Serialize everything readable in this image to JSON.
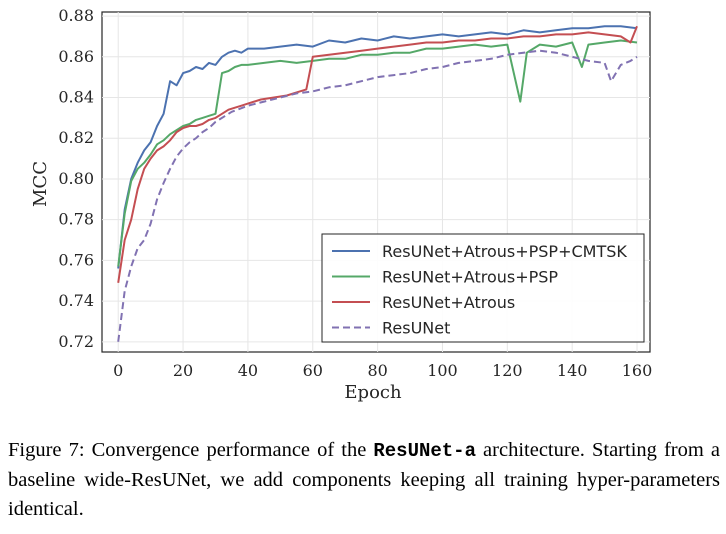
{
  "chart_data": {
    "type": "line",
    "title": "",
    "xlabel": "Epoch",
    "ylabel": "MCC",
    "xlim": [
      -5,
      164
    ],
    "ylim": [
      0.715,
      0.882
    ],
    "xticks": [
      0,
      20,
      40,
      60,
      80,
      100,
      120,
      140,
      160
    ],
    "yticks": [
      0.72,
      0.74,
      0.76,
      0.78,
      0.8,
      0.82,
      0.84,
      0.86,
      0.88
    ],
    "ytick_labels": [
      "0.72",
      "0.74",
      "0.76",
      "0.78",
      "0.80",
      "0.82",
      "0.84",
      "0.86",
      "0.88"
    ],
    "grid": true,
    "legend_position": "lower-right",
    "series": [
      {
        "name": "ResUNet+Atrous+PSP+CMTSK",
        "color": "#4c72b0",
        "dash": "solid",
        "x": [
          0,
          2,
          4,
          6,
          8,
          10,
          12,
          14,
          16,
          18,
          20,
          22,
          24,
          26,
          28,
          30,
          32,
          34,
          36,
          38,
          40,
          45,
          50,
          55,
          60,
          65,
          70,
          75,
          80,
          85,
          90,
          95,
          100,
          105,
          110,
          115,
          120,
          125,
          130,
          135,
          140,
          145,
          150,
          155,
          160
        ],
        "y": [
          0.756,
          0.785,
          0.8,
          0.808,
          0.814,
          0.818,
          0.826,
          0.832,
          0.848,
          0.846,
          0.852,
          0.853,
          0.855,
          0.854,
          0.857,
          0.856,
          0.86,
          0.862,
          0.863,
          0.862,
          0.864,
          0.864,
          0.865,
          0.866,
          0.865,
          0.868,
          0.867,
          0.869,
          0.868,
          0.87,
          0.869,
          0.87,
          0.871,
          0.87,
          0.871,
          0.872,
          0.871,
          0.873,
          0.872,
          0.873,
          0.874,
          0.874,
          0.875,
          0.875,
          0.874
        ]
      },
      {
        "name": "ResUNet+Atrous+PSP",
        "color": "#55a868",
        "dash": "solid",
        "x": [
          0,
          2,
          4,
          6,
          8,
          10,
          12,
          14,
          16,
          18,
          20,
          22,
          24,
          26,
          28,
          30,
          32,
          34,
          36,
          38,
          40,
          45,
          50,
          55,
          60,
          65,
          70,
          75,
          80,
          85,
          90,
          95,
          100,
          105,
          110,
          115,
          120,
          122,
          124,
          126,
          130,
          135,
          140,
          143,
          145,
          150,
          155,
          160
        ],
        "y": [
          0.757,
          0.783,
          0.799,
          0.805,
          0.808,
          0.812,
          0.817,
          0.819,
          0.822,
          0.824,
          0.826,
          0.827,
          0.829,
          0.83,
          0.831,
          0.832,
          0.852,
          0.853,
          0.855,
          0.856,
          0.856,
          0.857,
          0.858,
          0.857,
          0.858,
          0.859,
          0.859,
          0.861,
          0.861,
          0.862,
          0.862,
          0.864,
          0.864,
          0.865,
          0.866,
          0.865,
          0.866,
          0.852,
          0.838,
          0.862,
          0.866,
          0.865,
          0.867,
          0.855,
          0.866,
          0.867,
          0.868,
          0.867
        ]
      },
      {
        "name": "ResUNet+Atrous",
        "color": "#c44e52",
        "dash": "solid",
        "x": [
          0,
          2,
          4,
          6,
          8,
          10,
          12,
          14,
          16,
          18,
          20,
          22,
          24,
          26,
          28,
          30,
          32,
          34,
          36,
          38,
          40,
          44,
          48,
          52,
          56,
          58,
          60,
          65,
          70,
          75,
          80,
          85,
          90,
          95,
          100,
          105,
          110,
          115,
          120,
          125,
          130,
          135,
          140,
          145,
          150,
          155,
          158,
          160
        ],
        "y": [
          0.749,
          0.77,
          0.78,
          0.795,
          0.805,
          0.81,
          0.814,
          0.816,
          0.819,
          0.823,
          0.825,
          0.826,
          0.826,
          0.827,
          0.829,
          0.83,
          0.832,
          0.834,
          0.835,
          0.836,
          0.837,
          0.839,
          0.84,
          0.841,
          0.843,
          0.844,
          0.86,
          0.861,
          0.862,
          0.863,
          0.864,
          0.865,
          0.866,
          0.867,
          0.867,
          0.868,
          0.868,
          0.869,
          0.869,
          0.87,
          0.87,
          0.871,
          0.871,
          0.872,
          0.871,
          0.87,
          0.867,
          0.875
        ]
      },
      {
        "name": "ResUNet",
        "color": "#8172b2",
        "dash": "dashed",
        "x": [
          0,
          2,
          4,
          6,
          8,
          10,
          12,
          14,
          16,
          18,
          20,
          22,
          24,
          26,
          28,
          30,
          35,
          40,
          45,
          50,
          55,
          60,
          65,
          70,
          75,
          80,
          85,
          90,
          95,
          100,
          105,
          110,
          115,
          120,
          125,
          130,
          135,
          140,
          145,
          150,
          152,
          155,
          158,
          160
        ],
        "y": [
          0.72,
          0.745,
          0.757,
          0.766,
          0.77,
          0.778,
          0.79,
          0.798,
          0.805,
          0.811,
          0.815,
          0.818,
          0.82,
          0.823,
          0.825,
          0.828,
          0.833,
          0.836,
          0.838,
          0.84,
          0.842,
          0.843,
          0.845,
          0.846,
          0.848,
          0.85,
          0.851,
          0.852,
          0.854,
          0.855,
          0.857,
          0.858,
          0.859,
          0.861,
          0.862,
          0.863,
          0.862,
          0.86,
          0.858,
          0.857,
          0.848,
          0.856,
          0.858,
          0.86
        ]
      }
    ]
  },
  "caption": {
    "prefix": "Figure 7: Convergence performance of the ",
    "code": "ResUNet-a",
    "suffix": " architecture. Starting from a baseline wide-ResUNet, we add components keeping all training hyper-parameters identical."
  }
}
